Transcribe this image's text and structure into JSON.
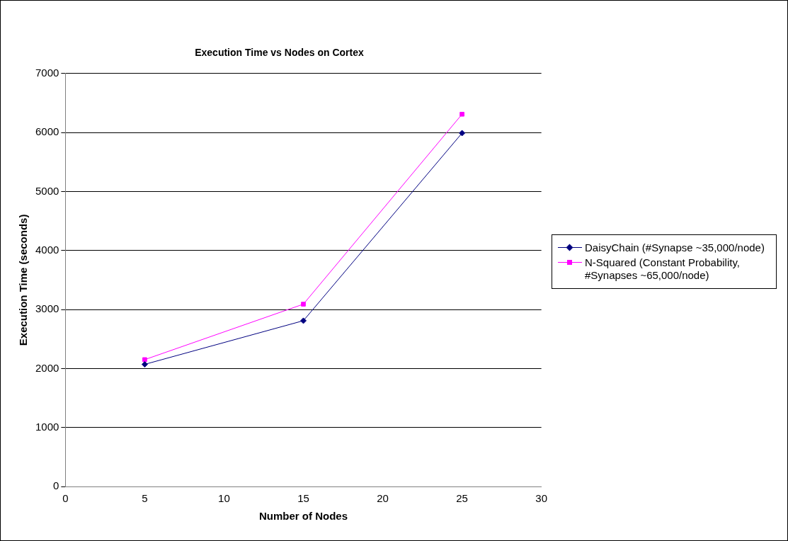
{
  "chart_data": {
    "type": "line",
    "title": "Execution Time vs Nodes on Cortex",
    "xlabel": "Number of Nodes",
    "ylabel": "Execution Time (seconds)",
    "x": [
      5,
      15,
      25
    ],
    "series": [
      {
        "name": "DaisyChain (#Synapse ~35,000/node)",
        "color": "#000080",
        "marker": "diamond",
        "values": [
          2070,
          2810,
          5990
        ]
      },
      {
        "name": "N-Squared (Constant Probability, #Synapses ~65,000/node)",
        "color": "#ff00ff",
        "marker": "square",
        "values": [
          2150,
          3090,
          6310
        ]
      }
    ],
    "xlim": [
      0,
      30
    ],
    "xticks": [
      0,
      5,
      10,
      15,
      20,
      25,
      30
    ],
    "ylim": [
      0,
      7000
    ],
    "yticks": [
      0,
      1000,
      2000,
      3000,
      4000,
      5000,
      6000,
      7000
    ],
    "grid": "y",
    "legend": "right",
    "line_style": "solid"
  }
}
